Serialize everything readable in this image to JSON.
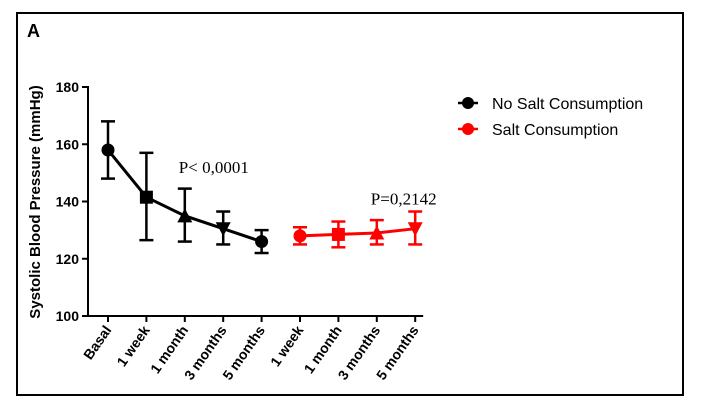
{
  "chart_data": {
    "type": "line",
    "panel_label": "A",
    "title": "",
    "xlabel": "",
    "ylabel": "Systolic Blood  Pressure (mmHg)",
    "ylim": [
      100,
      180
    ],
    "yticks": [
      100,
      120,
      140,
      160,
      180
    ],
    "categories": [
      "Basal",
      "1 week",
      "1 month",
      "3 months",
      "5 months",
      "1 week",
      "1 month",
      "3 months",
      "5 months"
    ],
    "series": [
      {
        "name": "No Salt Consumption",
        "color": "#000000",
        "marker": "circle",
        "points": [
          {
            "category_index": 0,
            "value": 158,
            "error_low": 148,
            "error_high": 168,
            "marker": "circle"
          },
          {
            "category_index": 1,
            "value": 141.5,
            "error_low": 126.5,
            "error_high": 157,
            "marker": "square"
          },
          {
            "category_index": 2,
            "value": 135,
            "error_low": 126,
            "error_high": 144.5,
            "marker": "triangle-up"
          },
          {
            "category_index": 3,
            "value": 130.5,
            "error_low": 125,
            "error_high": 136.5,
            "marker": "triangle-down"
          },
          {
            "category_index": 4,
            "value": 126,
            "error_low": 122,
            "error_high": 130,
            "marker": "circle"
          }
        ]
      },
      {
        "name": "Salt  Consumption",
        "color": "#ff0000",
        "marker": "circle",
        "points": [
          {
            "category_index": 5,
            "value": 128,
            "error_low": 125,
            "error_high": 131,
            "marker": "circle"
          },
          {
            "category_index": 6,
            "value": 128.5,
            "error_low": 124,
            "error_high": 133,
            "marker": "square"
          },
          {
            "category_index": 7,
            "value": 129,
            "error_low": 125,
            "error_high": 133.5,
            "marker": "triangle-up"
          },
          {
            "category_index": 8,
            "value": 130.5,
            "error_low": 125,
            "error_high": 136.5,
            "marker": "triangle-down"
          }
        ]
      }
    ],
    "annotations": [
      {
        "text": "P< 0,0001",
        "near_category_index": 2,
        "near_value": 150
      },
      {
        "text": "P=0,2142",
        "near_category_index": 7,
        "near_value": 139
      }
    ],
    "legend_position": "right"
  }
}
